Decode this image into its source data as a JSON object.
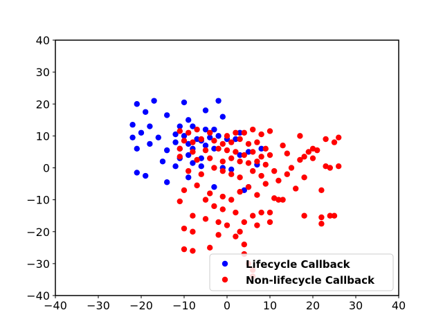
{
  "chart_data": {
    "type": "scatter",
    "title": "",
    "xlabel": "",
    "ylabel": "",
    "xlim": [
      -40,
      40
    ],
    "ylim": [
      -40,
      40
    ],
    "xticks": [
      -40,
      -30,
      -20,
      -10,
      0,
      10,
      20,
      30,
      40
    ],
    "yticks": [
      -40,
      -30,
      -20,
      -10,
      0,
      10,
      20,
      30,
      40
    ],
    "grid": false,
    "legend_position": "bottom-right",
    "series": [
      {
        "name": "Lifecycle Callback",
        "color": "#0000ff",
        "points": [
          [
            -21,
            20
          ],
          [
            -17,
            21
          ],
          [
            -10,
            20.5
          ],
          [
            -2,
            21
          ],
          [
            -19,
            17.5
          ],
          [
            -14,
            16.5
          ],
          [
            -5,
            18
          ],
          [
            -9,
            15
          ],
          [
            -22,
            13.5
          ],
          [
            -18,
            13
          ],
          [
            -11,
            13
          ],
          [
            -8,
            13
          ],
          [
            -5,
            12
          ],
          [
            -3,
            12
          ],
          [
            -1,
            16
          ],
          [
            -20,
            11
          ],
          [
            -16,
            9.5
          ],
          [
            -12,
            10.5
          ],
          [
            -10,
            10
          ],
          [
            -22,
            9.5
          ],
          [
            -18,
            7.5
          ],
          [
            -12,
            8
          ],
          [
            -9,
            7.5
          ],
          [
            -7,
            9
          ],
          [
            -6,
            8.5
          ],
          [
            -4,
            9.5
          ],
          [
            -2,
            10
          ],
          [
            -21,
            6
          ],
          [
            -14,
            5.5
          ],
          [
            -11,
            6
          ],
          [
            -8,
            6
          ],
          [
            -5,
            7
          ],
          [
            -3,
            6
          ],
          [
            -11,
            3
          ],
          [
            -9,
            4
          ],
          [
            -6,
            3
          ],
          [
            -15,
            2
          ],
          [
            -12,
            0.5
          ],
          [
            -8,
            1.5
          ],
          [
            -6,
            0.5
          ],
          [
            -1,
            0
          ],
          [
            1,
            -0.5
          ],
          [
            -21,
            -1.5
          ],
          [
            -19,
            -2.5
          ],
          [
            -9,
            -3
          ],
          [
            -14,
            -4.5
          ],
          [
            -3,
            -6
          ],
          [
            4,
            -7
          ],
          [
            5,
            -6
          ],
          [
            7,
            1
          ],
          [
            8,
            6
          ],
          [
            3,
            11
          ],
          [
            2,
            9
          ],
          [
            0,
            9
          ],
          [
            3,
            4
          ],
          [
            5,
            5
          ]
        ]
      },
      {
        "name": "Non-lifecycle Callback",
        "color": "#ff0000",
        "points": [
          [
            -11,
            11.5
          ],
          [
            -9,
            11
          ],
          [
            -7,
            12
          ],
          [
            -4,
            11
          ],
          [
            0,
            10
          ],
          [
            2,
            11
          ],
          [
            4,
            11
          ],
          [
            6,
            12
          ],
          [
            8,
            10.5
          ],
          [
            10,
            11.5
          ],
          [
            -10,
            8.5
          ],
          [
            -8,
            8
          ],
          [
            -6,
            9
          ],
          [
            -3,
            8.5
          ],
          [
            -1,
            7.5
          ],
          [
            1,
            8
          ],
          [
            3,
            9
          ],
          [
            5,
            7.5
          ],
          [
            7,
            8
          ],
          [
            9,
            6
          ],
          [
            -11,
            6
          ],
          [
            -8,
            5
          ],
          [
            -5,
            5.5
          ],
          [
            -2,
            6
          ],
          [
            0,
            5.5
          ],
          [
            2,
            5
          ],
          [
            4,
            4
          ],
          [
            6,
            5
          ],
          [
            8,
            3.5
          ],
          [
            10,
            4
          ],
          [
            13,
            7
          ],
          [
            14,
            4.5
          ],
          [
            17,
            10
          ],
          [
            20,
            6
          ],
          [
            23,
            9
          ],
          [
            25,
            8
          ],
          [
            26,
            9.5
          ],
          [
            -11,
            3.5
          ],
          [
            -7,
            2.5
          ],
          [
            -4,
            3
          ],
          [
            -1,
            2
          ],
          [
            1,
            3
          ],
          [
            3,
            2
          ],
          [
            5,
            1.5
          ],
          [
            7,
            2
          ],
          [
            9,
            1
          ],
          [
            11,
            -1
          ],
          [
            15,
            0
          ],
          [
            18,
            3.5
          ],
          [
            21,
            5.5
          ],
          [
            -9,
            -1
          ],
          [
            -6,
            -2
          ],
          [
            -3,
            0
          ],
          [
            -1,
            -1
          ],
          [
            1,
            -2
          ],
          [
            3,
            -3
          ],
          [
            6,
            -1
          ],
          [
            8,
            -2.5
          ],
          [
            12,
            -4
          ],
          [
            14,
            -2
          ],
          [
            16,
            -6.5
          ],
          [
            18,
            -3
          ],
          [
            23,
            0.5
          ],
          [
            24,
            0
          ],
          [
            26,
            0.5
          ],
          [
            -10,
            -7
          ],
          [
            -7,
            -5.5
          ],
          [
            -4,
            -8
          ],
          [
            -1,
            -9
          ],
          [
            1,
            -10
          ],
          [
            3,
            -7.5
          ],
          [
            5,
            -6
          ],
          [
            7,
            -8.5
          ],
          [
            9,
            -5
          ],
          [
            11,
            -9.5
          ],
          [
            13,
            -10
          ],
          [
            -11,
            -10.5
          ],
          [
            -5,
            -10
          ],
          [
            -3,
            -12
          ],
          [
            -1,
            -13
          ],
          [
            2,
            -14
          ],
          [
            4,
            -17
          ],
          [
            6,
            -15
          ],
          [
            8,
            -14
          ],
          [
            10,
            -17
          ],
          [
            18,
            -15
          ],
          [
            22,
            -15.5
          ],
          [
            24,
            -15
          ],
          [
            25,
            -15
          ],
          [
            22,
            -7
          ],
          [
            -8,
            -15
          ],
          [
            -5,
            -16
          ],
          [
            -2,
            -17
          ],
          [
            0,
            -18
          ],
          [
            3,
            -20
          ],
          [
            7,
            -18
          ],
          [
            -10,
            -19
          ],
          [
            -8,
            -20
          ],
          [
            -2,
            -21
          ],
          [
            2,
            -21.5
          ],
          [
            4,
            -24
          ],
          [
            -10,
            -25.5
          ],
          [
            -8,
            -26
          ],
          [
            -4,
            -25
          ],
          [
            4,
            -27
          ],
          [
            5,
            -30
          ],
          [
            6,
            -32
          ],
          [
            6,
            -34
          ],
          [
            22,
            -17.5
          ],
          [
            19,
            5
          ],
          [
            17,
            2.5
          ],
          [
            12,
            -10
          ],
          [
            10,
            -14
          ],
          [
            20,
            3
          ]
        ]
      }
    ]
  }
}
